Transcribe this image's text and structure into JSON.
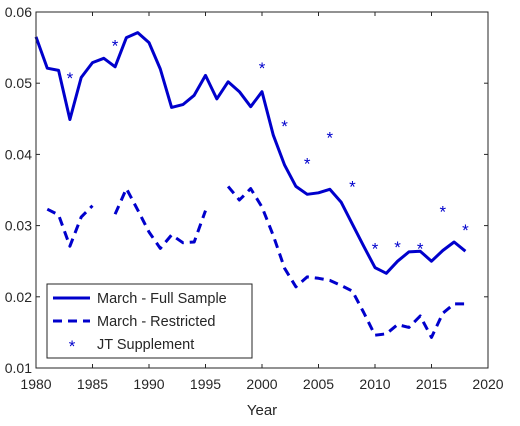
{
  "chart_data": {
    "type": "line",
    "xlabel": "Year",
    "ylabel": "",
    "xlim": [
      1980,
      2020
    ],
    "ylim": [
      0.01,
      0.06
    ],
    "xticks": [
      1980,
      1985,
      1990,
      1995,
      2000,
      2005,
      2010,
      2015,
      2020
    ],
    "yticks": [
      0.01,
      0.02,
      0.03,
      0.04,
      0.05,
      0.06
    ],
    "xtick_labels": [
      "1980",
      "1985",
      "1990",
      "1995",
      "2000",
      "2005",
      "2010",
      "2015",
      "2020"
    ],
    "ytick_labels": [
      "0.01",
      "0.02",
      "0.03",
      "0.04",
      "0.05",
      "0.06"
    ],
    "grid": false,
    "legend_position": "bottom-left",
    "color": "#0000cc",
    "series": [
      {
        "name": "March - Full Sample",
        "style": "solid",
        "x": [
          1980,
          1981,
          1982,
          1983,
          1984,
          1985,
          1986,
          1987,
          1988,
          1989,
          1990,
          1991,
          1992,
          1993,
          1994,
          1995,
          1996,
          1997,
          1998,
          1999,
          2000,
          2001,
          2002,
          2003,
          2004,
          2005,
          2006,
          2007,
          2008,
          2009,
          2010,
          2011,
          2012,
          2013,
          2014,
          2015,
          2016,
          2017,
          2018
        ],
        "y": [
          0.0565,
          0.0521,
          0.0518,
          0.0449,
          0.0508,
          0.0529,
          0.0535,
          0.0523,
          0.0564,
          0.0571,
          0.0557,
          0.052,
          0.0466,
          0.047,
          0.0483,
          0.0511,
          0.0478,
          0.0502,
          0.0488,
          0.0467,
          0.0488,
          0.0427,
          0.0385,
          0.0355,
          0.0344,
          0.0346,
          0.0351,
          0.0333,
          0.0302,
          0.0271,
          0.0241,
          0.0233,
          0.025,
          0.0263,
          0.0264,
          0.025,
          0.0265,
          0.0277,
          0.0264
        ]
      },
      {
        "name": "March - Restricted",
        "style": "dashed",
        "x": [
          1980,
          1981,
          1982,
          1983,
          1984,
          1985,
          null,
          1987,
          1988,
          1989,
          1990,
          1991,
          1992,
          1993,
          1994,
          1995,
          null,
          1997,
          1998,
          1999,
          2000,
          2001,
          2002,
          2003,
          2004,
          2005,
          2006,
          2007,
          2008,
          2009,
          2010,
          2011,
          2012,
          2013,
          2014,
          2015,
          2016,
          2017,
          2018
        ],
        "y": [
          null,
          0.0323,
          0.0315,
          0.0271,
          0.0312,
          0.0328,
          null,
          0.0316,
          0.0352,
          0.0322,
          0.0291,
          0.0268,
          0.0287,
          0.0276,
          0.0277,
          0.0321,
          null,
          0.0355,
          0.0336,
          0.0352,
          0.0326,
          0.0286,
          0.024,
          0.0214,
          0.0228,
          0.0226,
          0.0223,
          0.0216,
          0.0208,
          0.0178,
          0.0146,
          0.0148,
          0.0161,
          0.0157,
          0.0173,
          0.0143,
          0.0177,
          0.019,
          0.019
        ]
      },
      {
        "name": "JT Supplement",
        "style": "marker",
        "marker": "*",
        "x": [
          1983,
          1987,
          2000,
          2002,
          2004,
          2006,
          2008,
          2010,
          2012,
          2014,
          2016,
          2018
        ],
        "y": [
          0.0507,
          0.0553,
          0.0521,
          0.044,
          0.0387,
          0.0424,
          0.0355,
          0.0268,
          0.027,
          0.0268,
          0.032,
          0.0294
        ]
      }
    ]
  }
}
